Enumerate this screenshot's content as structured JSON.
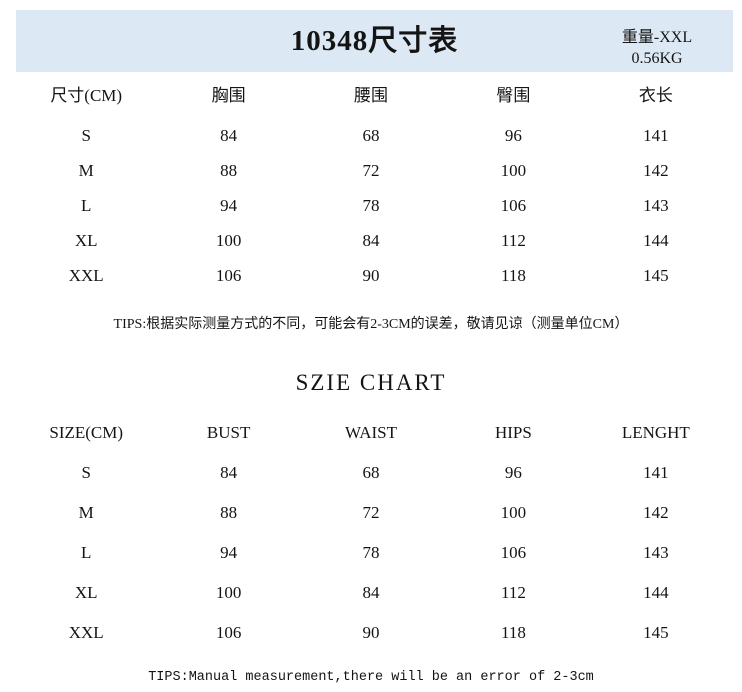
{
  "header": {
    "title": "10348尺寸表",
    "weight_size": "重量-XXL",
    "weight_value": "0.56KG",
    "band_color": "#dce9f5"
  },
  "table_cn": {
    "columns": [
      "尺寸(CM)",
      "胸围",
      "腰围",
      "臀围",
      "衣长"
    ],
    "rows": [
      [
        "S",
        "84",
        "68",
        "96",
        "141"
      ],
      [
        "M",
        "88",
        "72",
        "100",
        "142"
      ],
      [
        "L",
        "94",
        "78",
        "106",
        "143"
      ],
      [
        "XL",
        "100",
        "84",
        "112",
        "144"
      ],
      [
        "XXL",
        "106",
        "90",
        "118",
        "145"
      ]
    ],
    "tips": "TIPS:根据实际测量方式的不同，可能会有2-3CM的误差，敬请见谅（测量单位CM）"
  },
  "table_en": {
    "heading": "SZIE CHART",
    "columns": [
      "SIZE(CM)",
      "BUST",
      "WAIST",
      "HIPS",
      "LENGHT"
    ],
    "rows": [
      [
        "S",
        "84",
        "68",
        "96",
        "141"
      ],
      [
        "M",
        "88",
        "72",
        "100",
        "142"
      ],
      [
        "L",
        "94",
        "78",
        "106",
        "143"
      ],
      [
        "XL",
        "100",
        "84",
        "112",
        "144"
      ],
      [
        "XXL",
        "106",
        "90",
        "118",
        "145"
      ]
    ],
    "tips": "TIPS:Manual measurement,there will be an error of 2-3cm"
  }
}
